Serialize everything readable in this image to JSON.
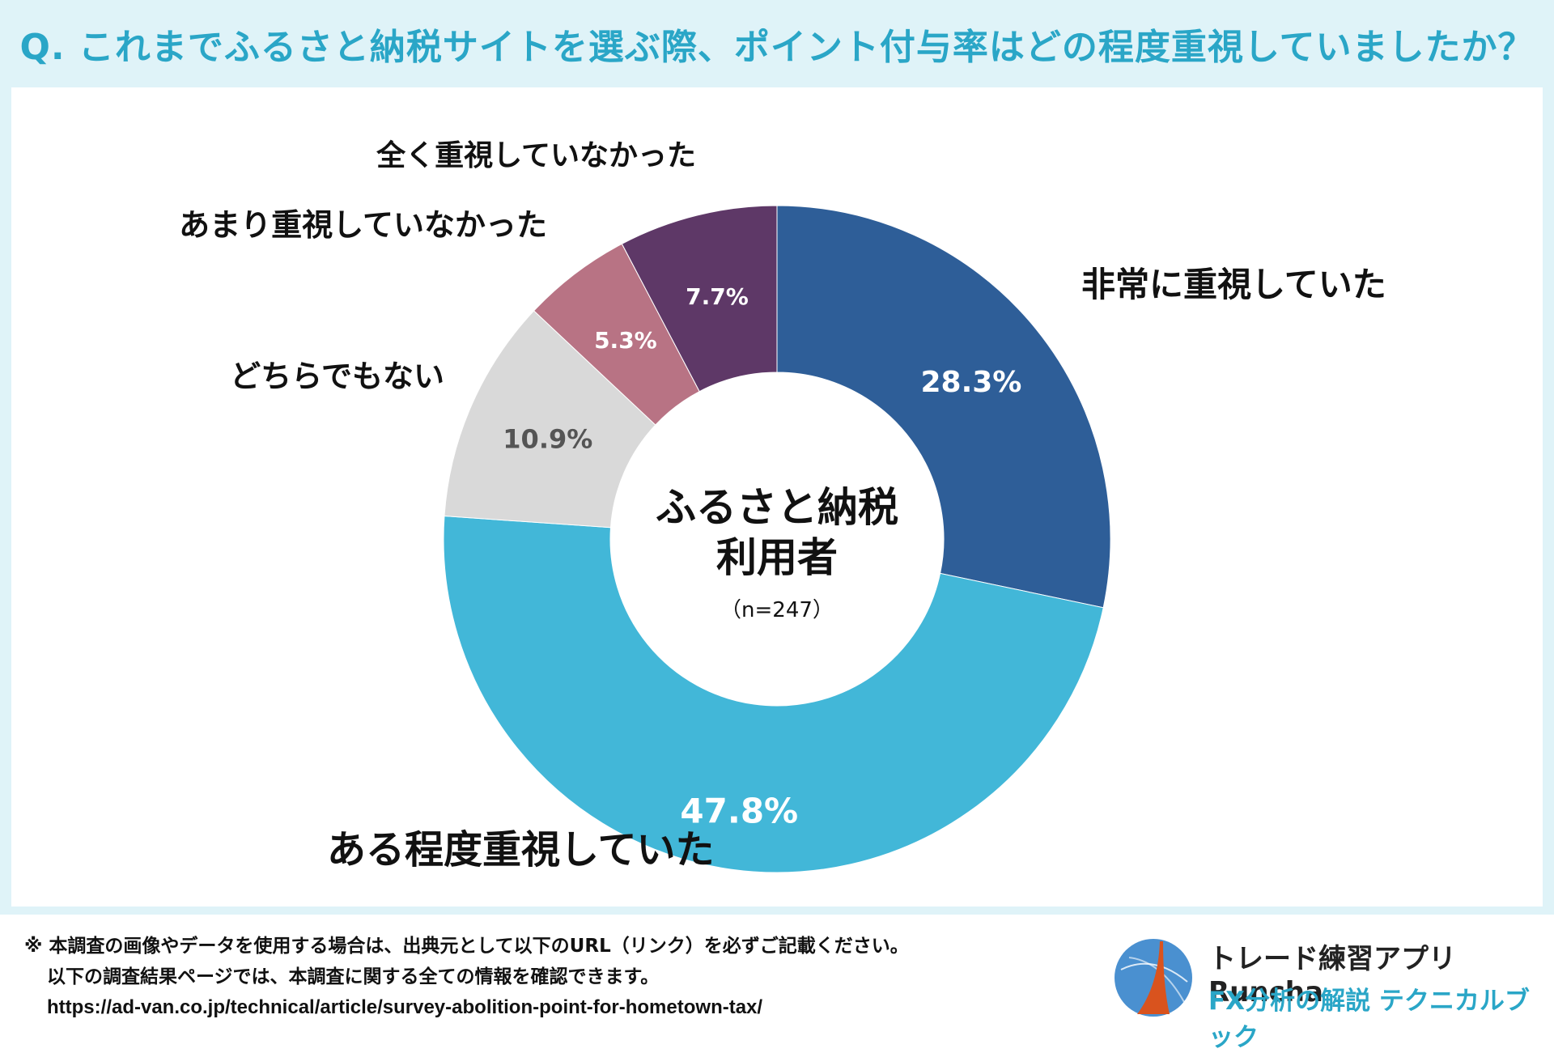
{
  "header": {
    "title": "Q. これまでふるさと納税サイトを選ぶ際、ポイント付与率はどの程度重視していましたか？"
  },
  "chart_data": {
    "type": "pie",
    "title": "Q. これまでふるさと納税サイトを選ぶ際、ポイント付与率はどの程度重視していましたか？",
    "center_label": [
      "ふるさと納税",
      "利用者"
    ],
    "n_label": "（n=247）",
    "categories": [
      "非常に重視していた",
      "ある程度重視していた",
      "どちらでもない",
      "あまり重視していなかった",
      "全く重視していなかった"
    ],
    "values": [
      28.3,
      47.8,
      10.9,
      5.3,
      7.7
    ],
    "value_labels": [
      "28.3%",
      "47.8%",
      "10.9%",
      "5.3%",
      "7.7%"
    ],
    "colors": [
      "#2e5e98",
      "#42b7d8",
      "#d9d9d9",
      "#b87384",
      "#5e3867"
    ],
    "value_label_colors": [
      "#ffffff",
      "#ffffff",
      "#555555",
      "#ffffff",
      "#ffffff"
    ]
  },
  "footer": {
    "note_line1": "※ 本調査の画像やデータを使用する場合は、出典元として以下のURL（リンク）を必ずご記載ください。",
    "note_line2": "以下の調査結果ページでは、本調査に関する全ての情報を確認できます。",
    "url": "https://ad-van.co.jp/technical/article/survey-abolition-point-for-hometown-tax/"
  },
  "brand": {
    "line1": "トレード練習アプリ  Runcha",
    "line2": "FX分析の解説  テクニカルブック",
    "colors": {
      "accent": "#2aa6c7",
      "logo_blue": "#4a90d0",
      "logo_orange": "#d9531e"
    }
  }
}
